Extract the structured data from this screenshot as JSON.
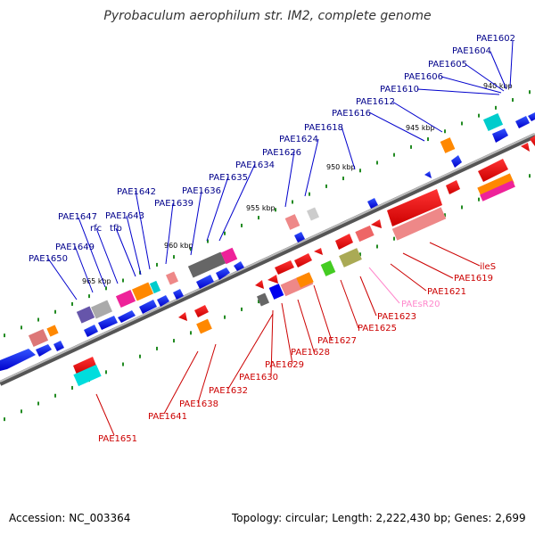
{
  "title": "Pyrobaculum aerophilum str. IM2, complete genome",
  "footer": {
    "accession": "Accession: NC_003364",
    "summary": "Topology: circular; Length: 2,222,430 bp; Genes: 2,699"
  },
  "ticks": [
    "940 kbp",
    "945 kbp",
    "950 kbp",
    "955 kbp",
    "960 kbp",
    "965 kbp"
  ],
  "labels_top": [
    "PAE1602",
    "PAE1604",
    "PAE1605",
    "PAE1606",
    "PAE1610",
    "PAE1612",
    "PAE1616",
    "PAE1618",
    "PAE1624",
    "PAE1626",
    "PAE1634",
    "PAE1635",
    "PAE1636",
    "PAE1639",
    "PAE1642",
    "PAE1643",
    "tfb",
    "rfc",
    "PAE1647",
    "PAE1649",
    "PAE1650"
  ],
  "labels_bottom": [
    "ileS",
    "PAE1619",
    "PAE1621",
    "PAEsR20",
    "PAE1623",
    "PAE1625",
    "PAE1627",
    "PAE1628",
    "PAE1629",
    "PAE1630",
    "PAE1632",
    "PAE1638",
    "PAE1641",
    "PAE1651"
  ],
  "colors": {
    "forward_label": "#00008b",
    "reverse_label": "#cc0000",
    "rna_label": "#ff88cc",
    "forward_gene": "#0000ee",
    "reverse_gene": "#ee0000",
    "tick": "#228b22",
    "axis": "#777777"
  }
}
